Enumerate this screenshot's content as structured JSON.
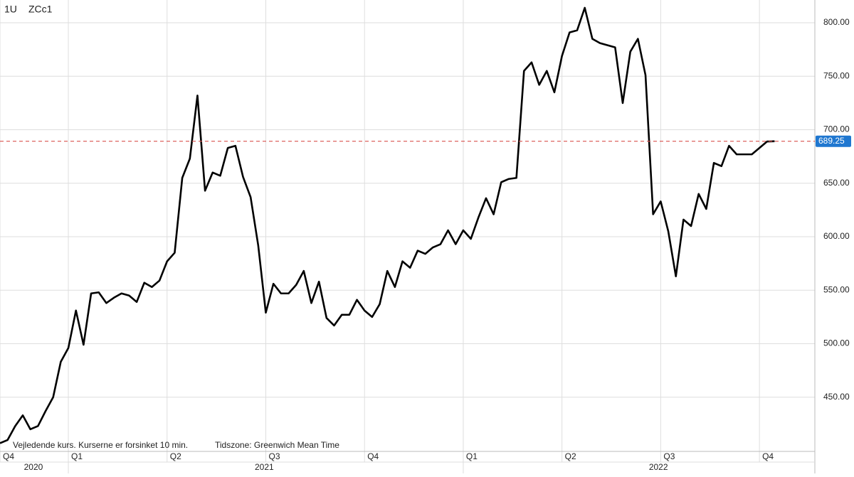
{
  "chart_data": {
    "type": "line",
    "interval": "1U",
    "symbol": "ZCc1",
    "note": "Vejledende kurs. Kurserne er forsinket 10 min.",
    "timezone": "Tidszone: Greenwich Mean Time",
    "color": "#000000",
    "values": [
      407,
      410,
      423,
      433,
      420,
      423,
      437,
      450,
      483,
      496,
      531,
      499,
      547,
      548,
      538,
      543,
      547,
      545,
      539,
      557,
      553,
      559,
      577,
      585,
      655,
      673,
      732,
      643,
      660,
      657,
      683,
      685,
      656,
      637,
      592,
      529,
      556,
      547,
      547,
      555,
      568,
      538,
      558,
      524,
      517,
      527,
      527,
      541,
      531,
      525,
      537,
      568,
      553,
      577,
      571,
      587,
      584,
      590,
      593,
      606,
      593,
      606,
      598,
      618,
      636,
      621,
      651,
      654,
      655,
      755,
      763,
      742,
      755,
      735,
      769,
      791,
      793,
      814,
      785,
      781,
      779,
      777,
      725,
      773,
      785,
      751,
      621,
      633,
      605,
      563,
      616,
      610,
      640,
      626,
      669,
      666,
      685,
      677,
      677,
      677,
      683,
      689,
      689.25
    ],
    "xlim": [
      0,
      107.3
    ],
    "xticks": [
      {
        "value": 0,
        "label": "Q4"
      },
      {
        "value": 9,
        "label": "Q1"
      },
      {
        "value": 22,
        "label": "Q2"
      },
      {
        "value": 35,
        "label": "Q3"
      },
      {
        "value": 48,
        "label": "Q4"
      },
      {
        "value": 61,
        "label": "Q1"
      },
      {
        "value": 74,
        "label": "Q2"
      },
      {
        "value": 87,
        "label": "Q3"
      },
      {
        "value": 100,
        "label": "Q4"
      }
    ],
    "year_ticks": [
      {
        "value": 4.4,
        "label": "2020"
      },
      {
        "value": 34.8,
        "label": "2021"
      },
      {
        "value": 86.7,
        "label": "2022"
      }
    ],
    "year_bounds": [
      9,
      61
    ],
    "ylim": [
      399.3,
      821.3
    ],
    "yticks": [
      {
        "value": 450,
        "label": "450.00"
      },
      {
        "value": 500,
        "label": "500.00"
      },
      {
        "value": 550,
        "label": "550.00"
      },
      {
        "value": 600,
        "label": "600.00"
      },
      {
        "value": 650,
        "label": "650.00"
      },
      {
        "value": 700,
        "label": "700.00"
      },
      {
        "value": 750,
        "label": "750.00"
      },
      {
        "value": 800,
        "label": "800.00"
      }
    ],
    "last_price": {
      "value": 689.25,
      "label": "689.25"
    },
    "last_price_color": "#d9534f",
    "grid": true
  }
}
